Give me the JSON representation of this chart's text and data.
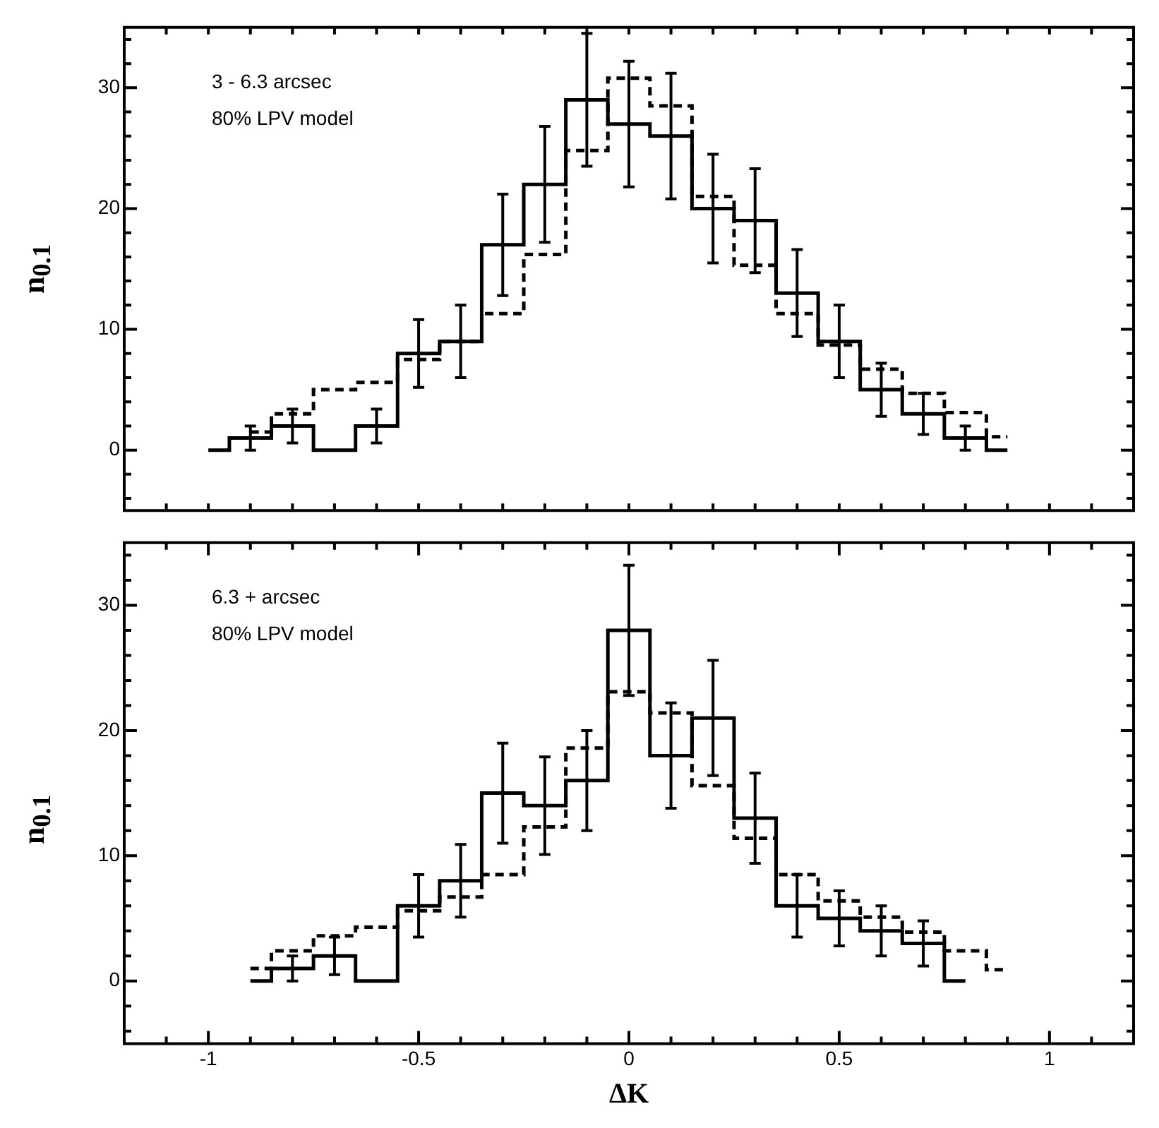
{
  "chart_data": [
    {
      "type": "step",
      "ylabel": "n$_{0.1}$",
      "annotations": [
        "3 - 6.3 arcsec",
        "80% LPV model"
      ],
      "x": [
        -1,
        -0.9,
        -0.8,
        -0.7,
        -0.6,
        -0.5,
        -0.4,
        -0.3,
        -0.2,
        -0.1,
        0,
        0.1,
        0.2,
        0.3,
        0.4,
        0.5,
        0.6,
        0.7,
        0.8,
        0.9
      ],
      "series": [
        {
          "color": "#000000",
          "line_style": "solid",
          "values": [
            0,
            1,
            2,
            0,
            2,
            8,
            9,
            17,
            22,
            29,
            27,
            26,
            20,
            19,
            13,
            9,
            5,
            3,
            1,
            0
          ],
          "errors": [
            null,
            1,
            1.4,
            null,
            1.4,
            2.8,
            3,
            4.2,
            4.8,
            5.5,
            5.2,
            5.2,
            4.5,
            4.3,
            3.6,
            3,
            2.2,
            1.7,
            1,
            null
          ]
        },
        {
          "color": "#000000",
          "line_style": "dashed",
          "values": [
            null,
            1.5,
            3,
            5,
            5.6,
            7.5,
            9,
            11.3,
            16.2,
            24.8,
            30.8,
            28.5,
            21,
            15.3,
            11.3,
            8.7,
            6.7,
            4.7,
            3.1,
            1.1
          ]
        }
      ],
      "xlim": [
        -1.2,
        1.2
      ],
      "xticks": [
        {
          "value": -1.1,
          "label": null
        },
        {
          "value": -1,
          "label": null
        },
        {
          "value": -0.9,
          "label": null
        },
        {
          "value": -0.8,
          "label": null
        },
        {
          "value": -0.7,
          "label": null
        },
        {
          "value": -0.6,
          "label": null
        },
        {
          "value": -0.5,
          "label": null
        },
        {
          "value": -0.4,
          "label": null
        },
        {
          "value": -0.3,
          "label": null
        },
        {
          "value": -0.2,
          "label": null
        },
        {
          "value": -0.1,
          "label": null
        },
        {
          "value": 0,
          "label": null
        },
        {
          "value": 0.1,
          "label": null
        },
        {
          "value": 0.2,
          "label": null
        },
        {
          "value": 0.3,
          "label": null
        },
        {
          "value": 0.4,
          "label": null
        },
        {
          "value": 0.5,
          "label": null
        },
        {
          "value": 0.6,
          "label": null
        },
        {
          "value": 0.7,
          "label": null
        },
        {
          "value": 0.8,
          "label": null
        },
        {
          "value": 0.9,
          "label": null
        },
        {
          "value": 1,
          "label": null
        },
        {
          "value": 1.1,
          "label": null
        }
      ],
      "ylim": [
        -5,
        35
      ],
      "yticks": [
        {
          "value": -4,
          "label": null
        },
        {
          "value": -2,
          "label": null
        },
        0,
        {
          "value": 2,
          "label": null
        },
        {
          "value": 4,
          "label": null
        },
        {
          "value": 6,
          "label": null
        },
        {
          "value": 8,
          "label": null
        },
        10,
        {
          "value": 12,
          "label": null
        },
        {
          "value": 14,
          "label": null
        },
        {
          "value": 16,
          "label": null
        },
        {
          "value": 18,
          "label": null
        },
        20,
        {
          "value": 22,
          "label": null
        },
        {
          "value": 24,
          "label": null
        },
        {
          "value": 26,
          "label": null
        },
        {
          "value": 28,
          "label": null
        },
        30,
        {
          "value": 32,
          "label": null
        },
        {
          "value": 34,
          "label": null
        }
      ],
      "tick_labels": "y"
    },
    {
      "type": "step",
      "xlabel": "ΔK",
      "ylabel": "n$_{0.1}$",
      "annotations": [
        "6.3 + arcsec",
        "80% LPV model"
      ],
      "x": [
        -0.9,
        -0.8,
        -0.7,
        -0.6,
        -0.5,
        -0.4,
        -0.3,
        -0.2,
        -0.1,
        0,
        0.1,
        0.2,
        0.3,
        0.4,
        0.5,
        0.6,
        0.7,
        0.8,
        0.9
      ],
      "series": [
        {
          "color": "#000000",
          "line_style": "solid",
          "values": [
            0,
            1,
            2,
            0,
            6,
            8,
            15,
            14,
            16,
            28,
            18,
            21,
            13,
            6,
            5,
            4,
            3,
            0,
            null
          ],
          "errors": [
            null,
            1,
            1.5,
            null,
            2.5,
            2.9,
            4,
            3.9,
            4,
            5.2,
            4.2,
            4.6,
            3.6,
            2.5,
            2.2,
            2,
            1.8,
            null,
            null
          ]
        },
        {
          "color": "#000000",
          "line_style": "dashed",
          "values": [
            1,
            2.4,
            3.6,
            4.3,
            5.6,
            6.7,
            8.5,
            12.3,
            18.6,
            23.1,
            21.4,
            15.6,
            11.4,
            8.5,
            6.4,
            5.1,
            3.9,
            2.4,
            0.9
          ]
        }
      ],
      "xlim": [
        -1.2,
        1.2
      ],
      "xticks": [
        {
          "value": -1.1,
          "label": null
        },
        -1,
        {
          "value": -0.9,
          "label": null
        },
        {
          "value": -0.8,
          "label": null
        },
        {
          "value": -0.7,
          "label": null
        },
        {
          "value": -0.6,
          "label": null
        },
        -0.5,
        {
          "value": -0.4,
          "label": null
        },
        {
          "value": -0.3,
          "label": null
        },
        {
          "value": -0.2,
          "label": null
        },
        {
          "value": -0.1,
          "label": null
        },
        0,
        {
          "value": 0.1,
          "label": null
        },
        {
          "value": 0.2,
          "label": null
        },
        {
          "value": 0.3,
          "label": null
        },
        {
          "value": 0.4,
          "label": null
        },
        0.5,
        {
          "value": 0.6,
          "label": null
        },
        {
          "value": 0.7,
          "label": null
        },
        {
          "value": 0.8,
          "label": null
        },
        {
          "value": 0.9,
          "label": null
        },
        1,
        {
          "value": 1.1,
          "label": null
        }
      ],
      "ylim": [
        -5,
        35
      ],
      "yticks": [
        {
          "value": -4,
          "label": null
        },
        {
          "value": -2,
          "label": null
        },
        0,
        {
          "value": 2,
          "label": null
        },
        {
          "value": 4,
          "label": null
        },
        {
          "value": 6,
          "label": null
        },
        {
          "value": 8,
          "label": null
        },
        10,
        {
          "value": 12,
          "label": null
        },
        {
          "value": 14,
          "label": null
        },
        {
          "value": 16,
          "label": null
        },
        {
          "value": 18,
          "label": null
        },
        20,
        {
          "value": 22,
          "label": null
        },
        {
          "value": 24,
          "label": null
        },
        {
          "value": 26,
          "label": null
        },
        {
          "value": 28,
          "label": null
        },
        30,
        {
          "value": 32,
          "label": null
        },
        {
          "value": 34,
          "label": null
        }
      ]
    }
  ]
}
